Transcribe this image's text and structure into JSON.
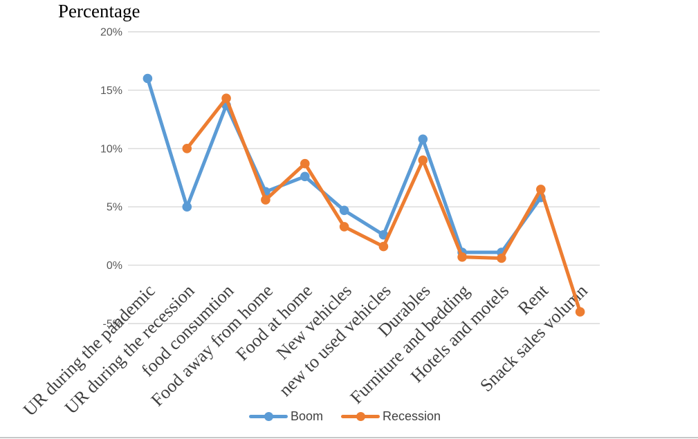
{
  "chart_data": {
    "type": "line",
    "title": "Percentage",
    "categories": [
      "UR during the pandemic",
      "UR during the recession",
      "food consumtion",
      "Food away from home",
      "Food at home",
      "New vehicles",
      "new to used vehicles",
      "Durables",
      "Furniture and bedding",
      "Hotels and motels",
      "Rent",
      "Snack sales volumn"
    ],
    "series": [
      {
        "name": "Boom",
        "color": "#5B9BD5",
        "values": [
          16.0,
          5.0,
          13.7,
          6.3,
          7.6,
          4.7,
          2.6,
          10.8,
          1.1,
          1.1,
          5.8,
          null
        ]
      },
      {
        "name": "Recession",
        "color": "#ED7D31",
        "values": [
          null,
          10.0,
          14.3,
          5.6,
          8.7,
          3.3,
          1.6,
          9.0,
          0.7,
          0.6,
          6.5,
          -4.0
        ]
      }
    ],
    "y_axis": {
      "min": -5,
      "max": 20,
      "step": 5,
      "tick_labels": [
        "20%",
        "15%",
        "10%",
        "5%",
        "0%",
        "-5%"
      ]
    },
    "x_axis": {
      "label_rotation_degrees": -45
    },
    "grid": true,
    "legend_position": "bottom",
    "colors": {
      "gridline": "#D9D9D9",
      "tick_text": "#595959",
      "category_text": "#404040",
      "title_text": "#000000",
      "legend_text": "#404040"
    }
  }
}
